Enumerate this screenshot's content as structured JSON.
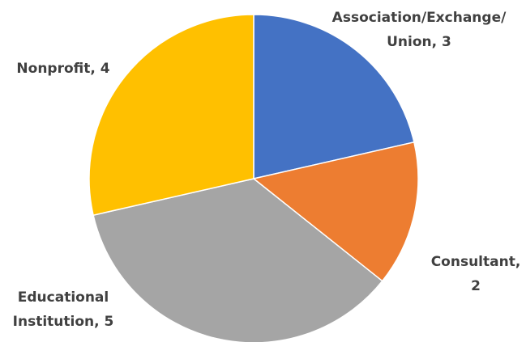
{
  "chart_data": {
    "type": "pie",
    "categories": [
      "Association/Exchange/Union",
      "Consultant",
      "Educational Institution",
      "Nonprofit"
    ],
    "values": [
      3,
      2,
      5,
      4
    ],
    "value_labels": [
      [
        "Association/Exchange/",
        "Union, 3"
      ],
      [
        "Consultant,",
        "2"
      ],
      [
        "Educational",
        "Institution, 5"
      ],
      [
        "Nonprofit, 4"
      ]
    ],
    "colors": [
      "#4472c4",
      "#ed7d31",
      "#a5a5a5",
      "#ffc000"
    ]
  }
}
